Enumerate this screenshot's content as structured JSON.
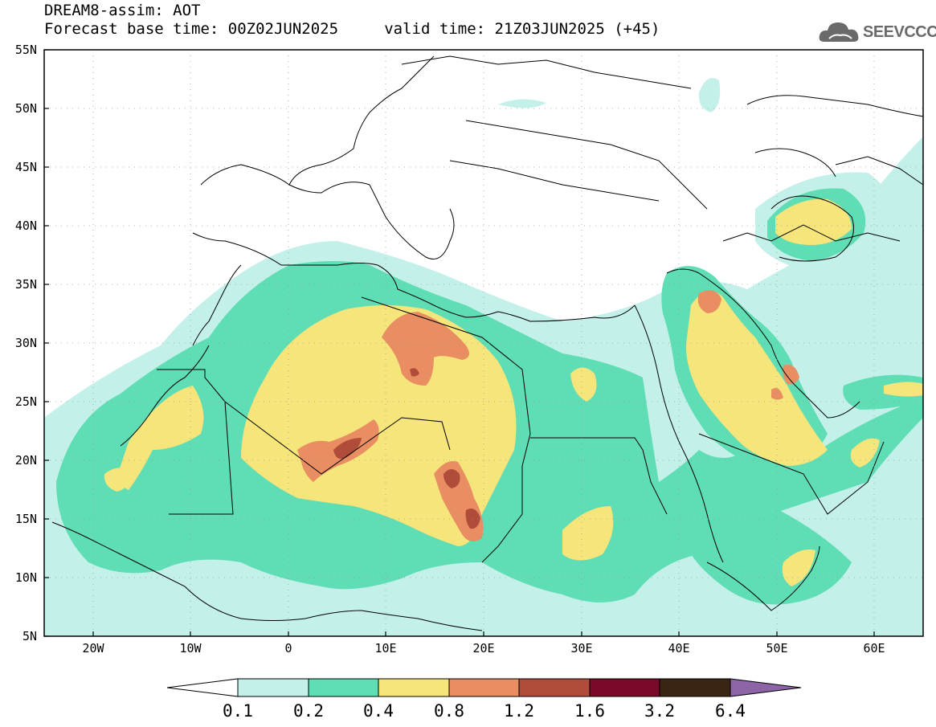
{
  "header": {
    "line1": "DREAM8-assim: AOT",
    "line2": "Forecast base time: 00Z02JUN2025     valid time: 21Z03JUN2025 (+45)"
  },
  "logo": {
    "text": "SEEVCCC",
    "icon": "cloud-icon"
  },
  "map": {
    "lat_labels": [
      "55N",
      "50N",
      "45N",
      "40N",
      "35N",
      "30N",
      "25N",
      "20N",
      "15N",
      "10N",
      "5N"
    ],
    "lon_labels": [
      "20W",
      "10W",
      "0",
      "10E",
      "20E",
      "30E",
      "40E",
      "50E",
      "60E"
    ]
  },
  "colorbar": {
    "levels": [
      "0.1",
      "0.2",
      "0.4",
      "0.8",
      "1.2",
      "1.6",
      "3.2",
      "6.4"
    ],
    "colors": [
      "#ffffff",
      "#c4f0ea",
      "#5fddb4",
      "#f6e57a",
      "#e88e62",
      "#b04c3a",
      "#7a0a2a",
      "#3a2414",
      "#8d65a6"
    ]
  },
  "palette": {
    "light_cyan": "#c4f0ea",
    "green": "#5fddb4",
    "yellow": "#f6e57a",
    "orange": "#e88e62",
    "brown": "#b04c3a",
    "dark_red": "#7a0a2a"
  }
}
